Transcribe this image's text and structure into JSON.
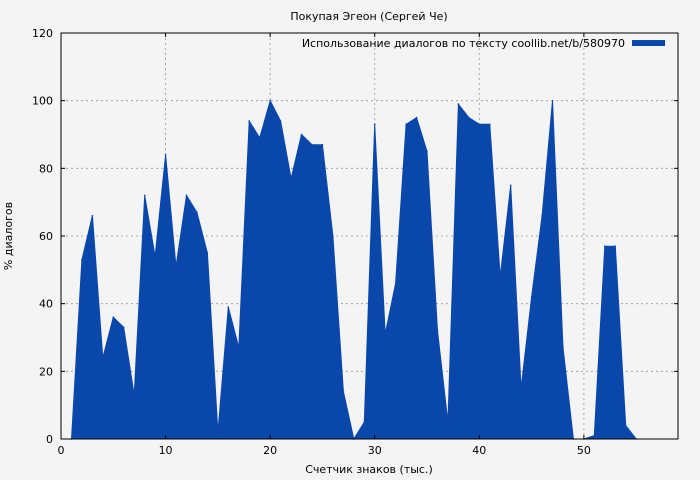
{
  "chart_data": {
    "type": "area",
    "title": "Покупая Эгеон (Сергей Че)",
    "xlabel": "Счетчик знаков (тыс.)",
    "ylabel": "% диалогов",
    "xlim": [
      0,
      59
    ],
    "ylim": [
      0,
      120
    ],
    "x_ticks": [
      0,
      10,
      20,
      30,
      40,
      50
    ],
    "y_ticks": [
      0,
      20,
      40,
      60,
      80,
      100,
      120
    ],
    "grid": true,
    "legend_position": "top-right",
    "colors": {
      "series": "#0a47ab",
      "background": "#f4f4f4",
      "grid": "#999999"
    },
    "series": [
      {
        "name": "Использование диалогов по тексту coollib.net/b/580970",
        "x": [
          1,
          2,
          3,
          4,
          5,
          6,
          7,
          8,
          9,
          10,
          11,
          12,
          13,
          14,
          15,
          16,
          17,
          18,
          19,
          20,
          21,
          22,
          23,
          24,
          25,
          26,
          27,
          28,
          29,
          30,
          31,
          32,
          33,
          34,
          35,
          36,
          37,
          38,
          39,
          40,
          41,
          42,
          43,
          44,
          45,
          46,
          47,
          48,
          49,
          50,
          51,
          52,
          53,
          54,
          55
        ],
        "values": [
          0,
          53,
          66,
          24,
          36,
          33,
          13,
          72,
          54,
          84,
          51,
          72,
          67,
          55,
          2,
          39,
          27,
          94,
          89,
          100,
          94,
          77,
          90,
          87,
          87,
          60,
          14,
          0,
          5,
          93,
          31,
          46,
          93,
          95,
          85,
          32,
          5,
          99,
          95,
          93,
          93,
          48,
          75,
          15,
          42,
          66,
          100,
          27,
          0,
          0,
          1,
          57,
          57,
          4,
          0
        ]
      }
    ]
  }
}
